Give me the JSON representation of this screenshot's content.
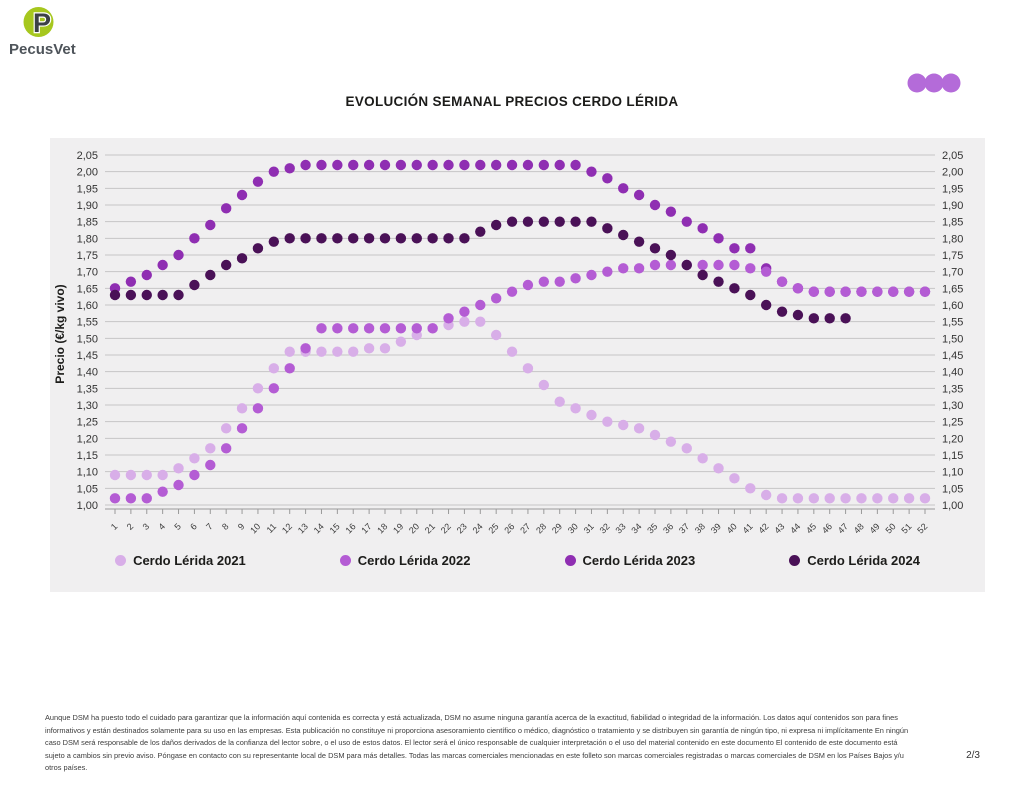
{
  "brand": {
    "name": "PecusVet",
    "logo_letter": "P",
    "logo_green": "#a6c71e",
    "logo_dark": "#3c4146"
  },
  "decoration": {
    "dots_color": "#b46bd9"
  },
  "chart_data": {
    "type": "scatter",
    "title": "EVOLUCIÓN SEMANAL PRECIOS CERDO LÉRIDA",
    "xlabel": "",
    "ylabel": "Precio (€/kg vivo)",
    "x": [
      1,
      2,
      3,
      4,
      5,
      6,
      7,
      8,
      9,
      10,
      11,
      12,
      13,
      14,
      15,
      16,
      17,
      18,
      19,
      20,
      21,
      22,
      23,
      24,
      25,
      26,
      27,
      28,
      29,
      30,
      31,
      32,
      33,
      34,
      35,
      36,
      37,
      38,
      39,
      40,
      41,
      42,
      43,
      44,
      45,
      46,
      47,
      48,
      49,
      50,
      51,
      52
    ],
    "ylim": [
      1.0,
      2.05
    ],
    "ytick_step": 0.05,
    "decimal_separator": ",",
    "grid": true,
    "legend_position": "bottom",
    "series": [
      {
        "name": "Cerdo Lérida 2021",
        "color": "#d8aee8",
        "values": [
          1.09,
          1.09,
          1.09,
          1.09,
          1.11,
          1.14,
          1.17,
          1.23,
          1.29,
          1.35,
          1.41,
          1.46,
          1.46,
          1.46,
          1.46,
          1.46,
          1.47,
          1.47,
          1.49,
          1.51,
          1.53,
          1.54,
          1.55,
          1.55,
          1.51,
          1.46,
          1.41,
          1.36,
          1.31,
          1.29,
          1.27,
          1.25,
          1.24,
          1.23,
          1.21,
          1.19,
          1.17,
          1.14,
          1.11,
          1.08,
          1.05,
          1.03,
          1.02,
          1.02,
          1.02,
          1.02,
          1.02,
          1.02,
          1.02,
          1.02,
          1.02,
          1.02
        ]
      },
      {
        "name": "Cerdo Lérida 2022",
        "color": "#b45cd4",
        "values": [
          1.02,
          1.02,
          1.02,
          1.04,
          1.06,
          1.09,
          1.12,
          1.17,
          1.23,
          1.29,
          1.35,
          1.41,
          1.47,
          1.53,
          1.53,
          1.53,
          1.53,
          1.53,
          1.53,
          1.53,
          1.53,
          1.56,
          1.58,
          1.6,
          1.62,
          1.64,
          1.66,
          1.67,
          1.67,
          1.68,
          1.69,
          1.7,
          1.71,
          1.71,
          1.72,
          1.72,
          1.72,
          1.72,
          1.72,
          1.72,
          1.71,
          1.7,
          1.67,
          1.65,
          1.64,
          1.64,
          1.64,
          1.64,
          1.64,
          1.64,
          1.64,
          1.64
        ]
      },
      {
        "name": "Cerdo Lérida 2023",
        "color": "#8f2eb2",
        "values": [
          1.65,
          1.67,
          1.69,
          1.72,
          1.75,
          1.8,
          1.84,
          1.89,
          1.93,
          1.97,
          2.0,
          2.01,
          2.02,
          2.02,
          2.02,
          2.02,
          2.02,
          2.02,
          2.02,
          2.02,
          2.02,
          2.02,
          2.02,
          2.02,
          2.02,
          2.02,
          2.02,
          2.02,
          2.02,
          2.02,
          2.0,
          1.98,
          1.95,
          1.93,
          1.9,
          1.88,
          1.85,
          1.83,
          1.8,
          1.77,
          1.77,
          1.71,
          1.67,
          1.65,
          1.64,
          1.64,
          1.64,
          1.64,
          1.64,
          1.64,
          1.64,
          1.64
        ]
      },
      {
        "name": "Cerdo Lérida 2024",
        "color": "#4a1157",
        "values": [
          1.63,
          1.63,
          1.63,
          1.63,
          1.63,
          1.66,
          1.69,
          1.72,
          1.74,
          1.77,
          1.79,
          1.8,
          1.8,
          1.8,
          1.8,
          1.8,
          1.8,
          1.8,
          1.8,
          1.8,
          1.8,
          1.8,
          1.8,
          1.82,
          1.84,
          1.85,
          1.85,
          1.85,
          1.85,
          1.85,
          1.85,
          1.83,
          1.81,
          1.79,
          1.77,
          1.75,
          1.72,
          1.69,
          1.67,
          1.65,
          1.63,
          1.6,
          1.58,
          1.57,
          1.56,
          1.56,
          1.56
        ]
      }
    ]
  },
  "footer": {
    "disclaimer": "Aunque DSM ha puesto todo el cuidado para garantizar que la información aquí contenida es correcta y está actualizada, DSM no asume ninguna garantía acerca de la exactitud, fiabilidad o integridad de la información. Los datos aquí contenidos son para fines informativos y están destinados solamente para su uso en las empresas. Esta publicación no constituye ni proporciona asesoramiento científico o médico, diagnóstico o tratamiento y se distribuyen sin garantía de ningún tipo, ni expresa ni implícitamente En ningún caso DSM será responsable de los daños derivados de la confianza del lector sobre, o el uso de estos datos. El lector será el único responsable de cualquier interpretación o el uso del material contenido en este documento El contenido de este documento está sujeto a cambios sin previo aviso. Póngase en contacto con su representante local de DSM para más detalles. Todas las marcas comerciales mencionadas en este folleto son marcas comerciales registradas o marcas comerciales de DSM en los Países Bajos y/u otros países.",
    "page_label": "2/3"
  }
}
